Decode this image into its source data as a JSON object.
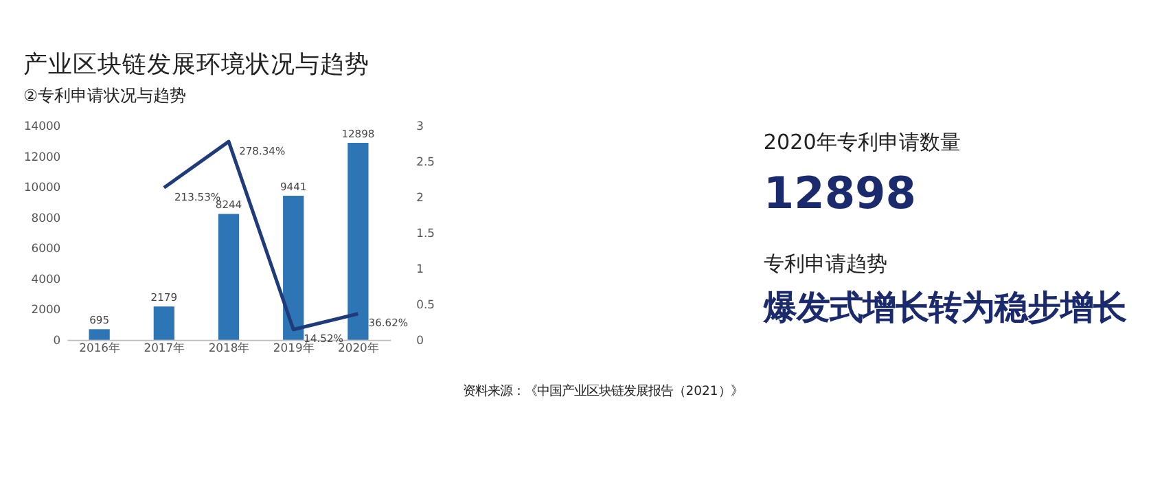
{
  "chart_data": {
    "type": "bar",
    "title": "产业区块链发展环境状况与趋势",
    "subtitle": "②专利申请状况与趋势",
    "categories": [
      "2016年",
      "2017年",
      "2018年",
      "2019年",
      "2020年"
    ],
    "series": [
      {
        "type": "bar",
        "color": "#2e75b6",
        "values": [
          695,
          2179,
          8244,
          9441,
          12898
        ]
      },
      {
        "type": "line",
        "axis": "y2",
        "color": "#1f3b7a",
        "values": [
          null,
          2.1353,
          2.7834,
          0.1452,
          0.3662
        ],
        "value_labels": [
          null,
          "213.53%",
          "278.34%",
          "14.52%",
          "36.62%"
        ]
      }
    ],
    "ylim": [
      0,
      14000
    ],
    "yticks": [
      0,
      2000,
      4000,
      6000,
      8000,
      10000,
      12000,
      14000
    ],
    "y2lim": [
      0,
      3
    ],
    "y2ticks": [
      0,
      0.5,
      1,
      1.5,
      2,
      2.5,
      3
    ],
    "data_labels": true,
    "grid": false,
    "marker": "none",
    "line_style": "solid",
    "annotations": [
      "2020年专利申请数量",
      "12898",
      "专利申请趋势",
      "爆发式增长转为稳步增长",
      "资料来源：《中国产业区块链发展报告（2021）》"
    ]
  }
}
